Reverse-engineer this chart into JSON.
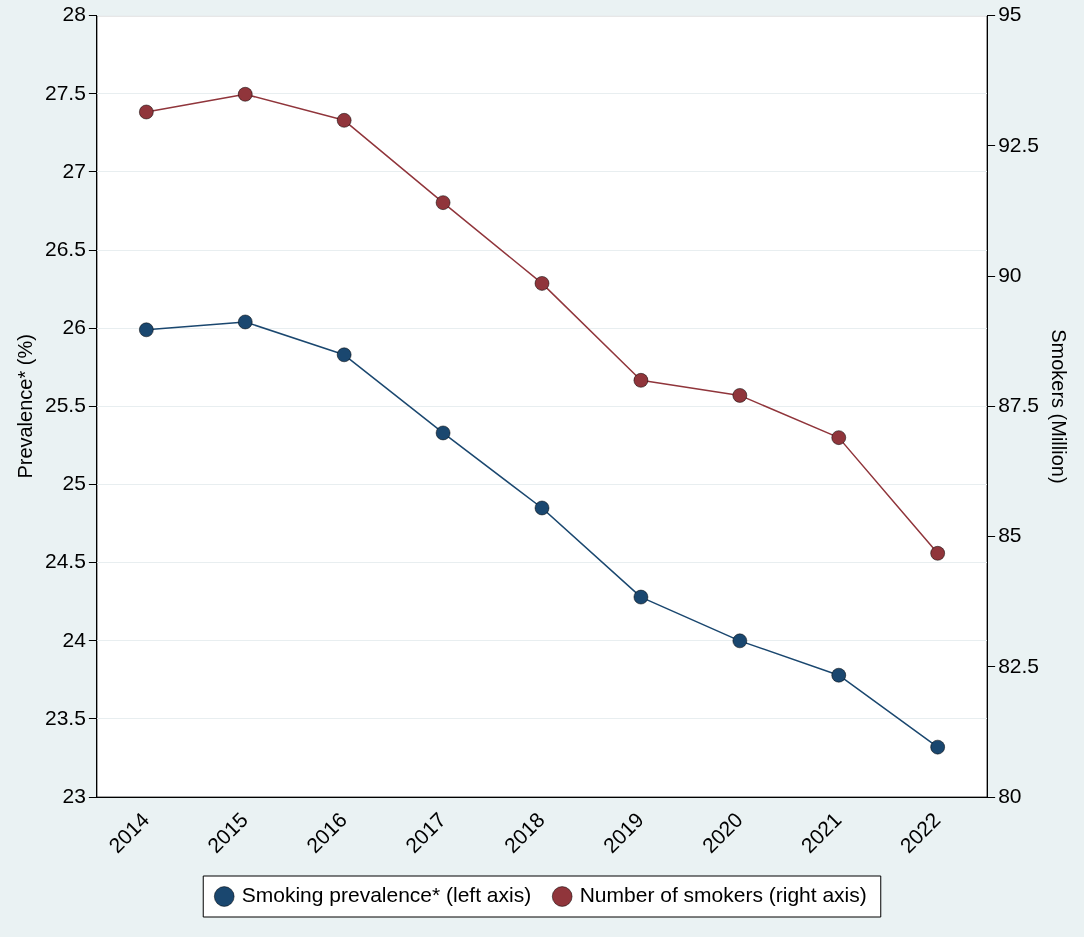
{
  "chart_data": {
    "type": "line",
    "categories": [
      "2014",
      "2015",
      "2016",
      "2017",
      "2018",
      "2019",
      "2020",
      "2021",
      "2022"
    ],
    "series": [
      {
        "name": "Smoking prevalence* (left axis)",
        "color": "#1a476f",
        "values": [
          25.99,
          26.04,
          25.83,
          25.33,
          24.85,
          24.28,
          24.0,
          23.78,
          23.32
        ]
      },
      {
        "name": "Number of smokers (right axis)",
        "color": "#90353b",
        "axis": "y2",
        "values": [
          93.15,
          93.49,
          92.99,
          91.41,
          89.86,
          88.0,
          87.71,
          86.9,
          84.68
        ]
      }
    ],
    "ylabel": "Prevalence* (%)",
    "y2label": "Smokers (Million)",
    "ylim": [
      23,
      28
    ],
    "yticks": [
      23,
      23.5,
      24,
      24.5,
      25,
      25.5,
      26,
      26.5,
      27,
      27.5,
      28
    ],
    "y2lim": [
      80,
      95
    ],
    "y2ticks": [
      80,
      82.5,
      85,
      87.5,
      90,
      92.5,
      95
    ],
    "grid": "y",
    "legend": "bottom",
    "marker": "circle",
    "line_style": "solid"
  }
}
